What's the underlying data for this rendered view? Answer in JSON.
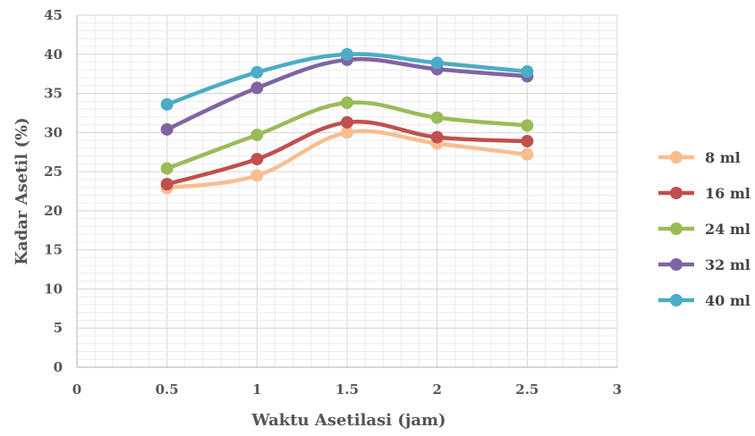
{
  "chart_data": {
    "type": "line",
    "title": "",
    "xlabel": "Waktu Asetilasi (jam)",
    "ylabel": "Kadar Asetil (%)",
    "xlim": [
      0,
      3
    ],
    "ylim": [
      0,
      45
    ],
    "x_ticks": [
      "0",
      "0.5",
      "1",
      "1.5",
      "2",
      "2.5",
      "3"
    ],
    "y_ticks": [
      "0",
      "5",
      "10",
      "15",
      "20",
      "25",
      "30",
      "35",
      "40",
      "45"
    ],
    "grid": true,
    "minor_grid": true,
    "legend_position": "right",
    "x": [
      0.5,
      1,
      1.5,
      2,
      2.5
    ],
    "series": [
      {
        "name": "8 ml",
        "color": "#F8BE8F",
        "values": [
          22.9,
          24.5,
          30.0,
          28.6,
          27.2
        ]
      },
      {
        "name": "16 ml",
        "color": "#C0504D",
        "values": [
          23.4,
          26.6,
          31.3,
          29.4,
          28.9
        ]
      },
      {
        "name": "24 ml",
        "color": "#9BBB59",
        "values": [
          25.4,
          29.7,
          33.8,
          31.9,
          30.9
        ]
      },
      {
        "name": "32 ml",
        "color": "#8064A2",
        "values": [
          30.4,
          35.7,
          39.3,
          38.1,
          37.2
        ]
      },
      {
        "name": "40 ml",
        "color": "#4BACC6",
        "values": [
          33.6,
          37.7,
          40.0,
          38.9,
          37.8
        ]
      }
    ]
  }
}
